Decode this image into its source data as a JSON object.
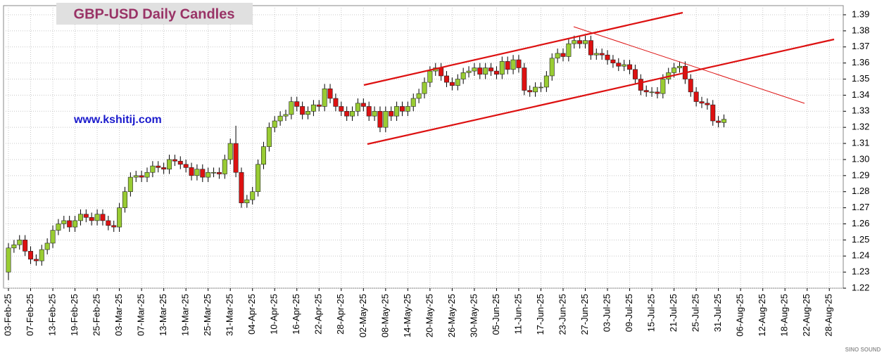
{
  "chart_data": {
    "type": "candlestick",
    "title": "GBP-USD Daily Candles",
    "annotation": "www.kshitij.com",
    "watermark": "SINO SOUND",
    "up_color": "#99cc33",
    "down_color": "#dd1111",
    "grid": true,
    "ylim": [
      1.22,
      1.39
    ],
    "yticks": [
      1.22,
      1.23,
      1.24,
      1.25,
      1.26,
      1.27,
      1.28,
      1.29,
      {
        "value": 1.3,
        "label": "1.30"
      },
      1.31,
      1.32,
      1.33,
      1.34,
      1.35,
      1.36,
      1.37,
      1.38,
      1.39
    ],
    "categories": [
      "03-Feb-25",
      null,
      null,
      null,
      "07-Feb-25",
      null,
      null,
      null,
      "13-Feb-25",
      null,
      null,
      null,
      "19-Feb-25",
      null,
      null,
      null,
      "25-Feb-25",
      null,
      null,
      null,
      "03-Mar-25",
      null,
      null,
      null,
      "07-Mar-25",
      null,
      null,
      null,
      "13-Mar-25",
      null,
      null,
      null,
      "19-Mar-25",
      null,
      null,
      null,
      "25-Mar-25",
      null,
      null,
      null,
      "31-Mar-25",
      null,
      null,
      null,
      "04-Apr-25",
      null,
      null,
      null,
      "10-Apr-25",
      null,
      null,
      null,
      "16-Apr-25",
      null,
      null,
      null,
      "22-Apr-25",
      null,
      null,
      null,
      "28-Apr-25",
      null,
      null,
      null,
      "02-May-25",
      null,
      null,
      null,
      "08-May-25",
      null,
      null,
      null,
      "14-May-25",
      null,
      null,
      null,
      "20-May-25",
      null,
      null,
      null,
      "26-May-25",
      null,
      null,
      null,
      "30-May-25",
      null,
      null,
      null,
      "05-Jun-25",
      null,
      null,
      null,
      "11-Jun-25",
      null,
      null,
      null,
      "17-Jun-25",
      null,
      null,
      null,
      "23-Jun-25",
      null,
      null,
      null,
      "27-Jun-25",
      null,
      null,
      null,
      "03-Jul-25",
      null,
      null,
      null,
      "09-Jul-25",
      null,
      null,
      null,
      "15-Jul-25",
      null,
      null,
      null,
      "21-Jul-25",
      null,
      null,
      null,
      "25-Jul-25",
      null,
      null,
      null,
      "31-Jul-25",
      null,
      null,
      null,
      "06-Aug-25",
      null,
      null,
      null,
      "12-Aug-25",
      null,
      null,
      null,
      "18-Aug-25",
      null,
      null,
      null,
      "22-Aug-25",
      null,
      null,
      null,
      "28-Aug-25",
      null
    ],
    "open": [
      1.23,
      1.245,
      1.247,
      1.25,
      1.243,
      1.238,
      1.237,
      1.244,
      1.248,
      1.256,
      1.26,
      1.262,
      1.258,
      1.262,
      1.266,
      1.264,
      1.262,
      1.266,
      1.262,
      1.259,
      1.258,
      1.27,
      1.28,
      1.289,
      1.29,
      1.289,
      1.292,
      1.296,
      1.295,
      1.294,
      1.3,
      1.299,
      1.297,
      1.295,
      1.29,
      1.294,
      1.289,
      1.292,
      1.292,
      1.291,
      1.3,
      1.31,
      1.292,
      1.273,
      1.275,
      1.28,
      1.297,
      1.308,
      1.32,
      1.324,
      1.327,
      1.328,
      1.336,
      1.333,
      1.328,
      1.33,
      1.334,
      1.333,
      1.344,
      1.338,
      1.333,
      1.33,
      1.327,
      1.33,
      1.335,
      1.333,
      1.327,
      1.33,
      1.32,
      1.33,
      1.327,
      1.333,
      1.33,
      1.333,
      1.338,
      1.341,
      1.348,
      1.355,
      1.357,
      1.352,
      1.348,
      1.346,
      1.35,
      1.354,
      1.355,
      1.357,
      1.353,
      1.357,
      1.355,
      1.353,
      1.361,
      1.356,
      1.362,
      1.357,
      1.343,
      1.342,
      1.345,
      1.345,
      1.352,
      1.363,
      1.366,
      1.364,
      1.372,
      1.374,
      1.372,
      1.374,
      1.365,
      1.366,
      1.365,
      1.362,
      1.36,
      1.358,
      1.359,
      1.356,
      1.35,
      1.343,
      1.342,
      1.342,
      1.341,
      1.35,
      1.354,
      1.357,
      1.358,
      1.35,
      1.342,
      1.336,
      1.335,
      1.334,
      1.324,
      1.323,
      null,
      null,
      null,
      null,
      null,
      null,
      null,
      null,
      null,
      null,
      null,
      null,
      null,
      null,
      null,
      null,
      null,
      null,
      null,
      null
    ],
    "high": [
      1.248,
      1.25,
      1.253,
      1.253,
      1.246,
      1.241,
      1.247,
      1.251,
      1.259,
      1.263,
      1.265,
      1.265,
      1.265,
      1.269,
      1.269,
      1.267,
      1.269,
      1.269,
      1.265,
      1.262,
      1.273,
      1.283,
      1.292,
      1.293,
      1.293,
      1.295,
      1.299,
      1.299,
      1.298,
      1.303,
      1.303,
      1.302,
      1.3,
      1.298,
      1.297,
      1.297,
      1.295,
      1.295,
      1.295,
      1.303,
      1.313,
      1.321,
      1.295,
      1.278,
      1.283,
      1.3,
      1.311,
      1.323,
      1.327,
      1.33,
      1.331,
      1.339,
      1.339,
      1.336,
      1.333,
      1.337,
      1.337,
      1.347,
      1.347,
      1.341,
      1.336,
      1.333,
      1.333,
      1.338,
      1.338,
      1.336,
      1.333,
      1.333,
      1.333,
      1.333,
      1.336,
      1.336,
      1.336,
      1.341,
      1.344,
      1.351,
      1.358,
      1.36,
      1.36,
      1.355,
      1.351,
      1.353,
      1.357,
      1.358,
      1.36,
      1.36,
      1.36,
      1.36,
      1.358,
      1.364,
      1.364,
      1.365,
      1.365,
      1.36,
      1.346,
      1.348,
      1.348,
      1.355,
      1.366,
      1.369,
      1.369,
      1.375,
      1.377,
      1.377,
      1.377,
      1.377,
      1.369,
      1.369,
      1.368,
      1.365,
      1.363,
      1.362,
      1.362,
      1.359,
      1.353,
      1.346,
      1.345,
      1.345,
      1.353,
      1.357,
      1.36,
      1.361,
      1.361,
      1.353,
      1.345,
      1.339,
      1.338,
      1.337,
      1.327,
      1.328,
      null,
      null,
      null,
      null,
      null,
      null,
      null,
      null,
      null,
      null,
      null,
      null,
      null,
      null,
      null,
      null,
      null,
      null,
      null,
      null
    ],
    "low": [
      1.225,
      1.242,
      1.244,
      1.24,
      1.235,
      1.234,
      1.234,
      1.241,
      1.245,
      1.253,
      1.257,
      1.255,
      1.255,
      1.259,
      1.261,
      1.259,
      1.259,
      1.259,
      1.256,
      1.255,
      1.255,
      1.267,
      1.277,
      1.286,
      1.286,
      1.286,
      1.289,
      1.292,
      1.291,
      1.291,
      1.296,
      1.294,
      1.292,
      1.287,
      1.287,
      1.286,
      1.286,
      1.289,
      1.288,
      1.288,
      1.297,
      1.289,
      1.27,
      1.27,
      1.272,
      1.277,
      1.294,
      1.305,
      1.317,
      1.321,
      1.324,
      1.325,
      1.33,
      1.325,
      1.325,
      1.327,
      1.33,
      1.33,
      1.335,
      1.33,
      1.327,
      1.324,
      1.324,
      1.327,
      1.33,
      1.324,
      1.324,
      1.317,
      1.317,
      1.324,
      1.324,
      1.327,
      1.327,
      1.33,
      1.335,
      1.338,
      1.345,
      1.352,
      1.349,
      1.345,
      1.343,
      1.343,
      1.347,
      1.351,
      1.352,
      1.35,
      1.35,
      1.352,
      1.35,
      1.35,
      1.353,
      1.353,
      1.354,
      1.34,
      1.339,
      1.339,
      1.342,
      1.342,
      1.349,
      1.36,
      1.361,
      1.361,
      1.369,
      1.369,
      1.369,
      1.362,
      1.362,
      1.362,
      1.359,
      1.357,
      1.355,
      1.355,
      1.353,
      1.347,
      1.34,
      1.339,
      1.339,
      1.338,
      1.338,
      1.347,
      1.351,
      1.354,
      1.347,
      1.339,
      1.333,
      1.332,
      1.331,
      1.321,
      1.32,
      1.32,
      null,
      null,
      null,
      null,
      null,
      null,
      null,
      null,
      null,
      null,
      null,
      null,
      null,
      null,
      null,
      null,
      null,
      null,
      null,
      null
    ],
    "close": [
      1.245,
      1.247,
      1.25,
      1.243,
      1.238,
      1.237,
      1.244,
      1.248,
      1.256,
      1.26,
      1.262,
      1.258,
      1.262,
      1.266,
      1.264,
      1.262,
      1.266,
      1.262,
      1.259,
      1.258,
      1.27,
      1.28,
      1.289,
      1.29,
      1.289,
      1.292,
      1.296,
      1.295,
      1.294,
      1.3,
      1.299,
      1.297,
      1.295,
      1.29,
      1.294,
      1.289,
      1.292,
      1.292,
      1.291,
      1.3,
      1.31,
      1.292,
      1.273,
      1.275,
      1.28,
      1.297,
      1.308,
      1.32,
      1.324,
      1.327,
      1.328,
      1.336,
      1.333,
      1.328,
      1.33,
      1.334,
      1.333,
      1.344,
      1.338,
      1.333,
      1.33,
      1.327,
      1.33,
      1.335,
      1.333,
      1.327,
      1.33,
      1.32,
      1.33,
      1.327,
      1.333,
      1.33,
      1.333,
      1.338,
      1.341,
      1.348,
      1.355,
      1.357,
      1.352,
      1.348,
      1.346,
      1.35,
      1.354,
      1.355,
      1.357,
      1.353,
      1.357,
      1.355,
      1.353,
      1.361,
      1.356,
      1.362,
      1.357,
      1.343,
      1.342,
      1.345,
      1.345,
      1.352,
      1.363,
      1.366,
      1.364,
      1.372,
      1.374,
      1.372,
      1.374,
      1.365,
      1.366,
      1.365,
      1.362,
      1.36,
      1.358,
      1.359,
      1.356,
      1.35,
      1.343,
      1.342,
      1.342,
      1.341,
      1.35,
      1.354,
      1.357,
      1.358,
      1.35,
      1.342,
      1.336,
      1.335,
      1.334,
      1.324,
      1.323,
      1.325,
      null,
      null,
      null,
      null,
      null,
      null,
      null,
      null,
      null,
      null,
      null,
      null,
      null,
      null,
      null,
      null,
      null,
      null,
      null,
      null
    ]
  }
}
